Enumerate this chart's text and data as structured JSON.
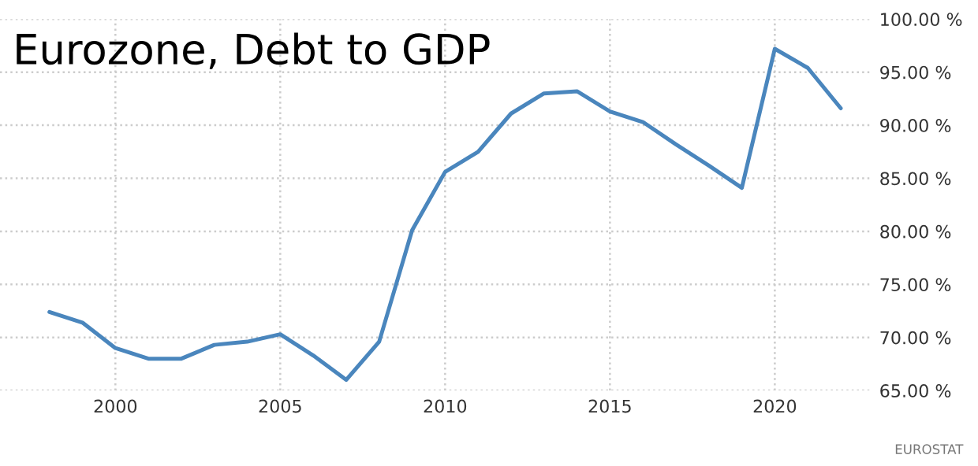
{
  "chart_data": {
    "type": "line",
    "title": "Eurozone, Debt to GDP",
    "x": [
      1998,
      1999,
      2000,
      2001,
      2002,
      2003,
      2004,
      2005,
      2006,
      2007,
      2008,
      2009,
      2010,
      2011,
      2012,
      2013,
      2014,
      2015,
      2016,
      2017,
      2018,
      2019,
      2020,
      2021,
      2022
    ],
    "series": [
      {
        "color": "#4a86bd",
        "values": [
          72.4,
          71.4,
          69.0,
          68.0,
          68.0,
          69.3,
          69.6,
          70.3,
          68.3,
          66.0,
          69.6,
          80.1,
          85.6,
          87.5,
          91.1,
          93.0,
          93.2,
          91.3,
          90.3,
          88.2,
          86.2,
          84.1,
          97.2,
          95.4,
          91.6
        ]
      }
    ],
    "xlim": [
      1996.5,
      2022.9
    ],
    "xticks": [
      2000,
      2005,
      2010,
      2015,
      2020
    ],
    "ylim": [
      65,
      100
    ],
    "yticks": [
      {
        "value": 65,
        "label": "65.00 %"
      },
      {
        "value": 70,
        "label": "70.00 %"
      },
      {
        "value": 75,
        "label": "75.00 %"
      },
      {
        "value": 80,
        "label": "80.00 %"
      },
      {
        "value": 85,
        "label": "85.00 %"
      },
      {
        "value": 90,
        "label": "90.00 %"
      },
      {
        "value": 95,
        "label": "95.00 %"
      },
      {
        "value": 100,
        "label": "100.00 %"
      }
    ],
    "grid": true,
    "marker": "none",
    "line_style": "solid",
    "annotations": [
      "EUROSTAT"
    ]
  }
}
